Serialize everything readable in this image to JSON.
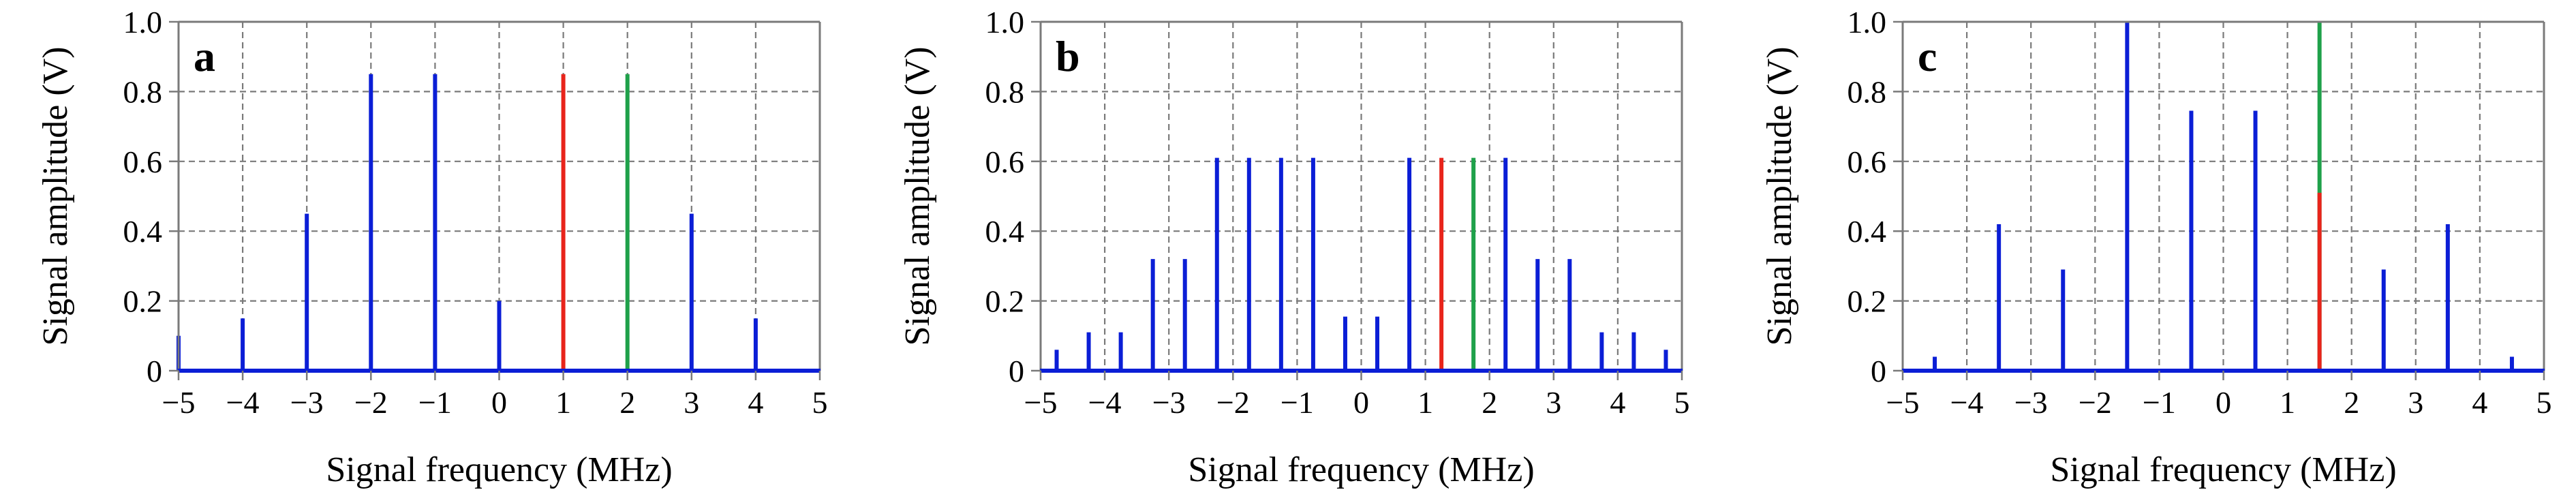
{
  "chart_data": [
    {
      "type": "bar",
      "panel_label": "a",
      "xlabel": "Signal frequency (MHz)",
      "ylabel": "Signal amplitude (V)",
      "xlim": [
        -5,
        5
      ],
      "ylim": [
        0,
        1.0
      ],
      "xticks": [
        "−5",
        "−4",
        "−3",
        "−2",
        "−1",
        "0",
        "1",
        "2",
        "3",
        "4",
        "5"
      ],
      "yticks": [
        "0",
        "0.2",
        "0.4",
        "0.6",
        "0.8",
        "1.0"
      ],
      "grid": true,
      "legend": "none",
      "series": [
        {
          "color": "#0b1ed6",
          "x": [
            -5,
            -4,
            -3,
            -2,
            -1,
            0,
            3,
            4
          ],
          "values": [
            0.1,
            0.15,
            0.45,
            0.85,
            0.85,
            0.2,
            0.45,
            0.15
          ]
        },
        {
          "color": "#e8241b",
          "x": [
            1
          ],
          "values": [
            0.85
          ]
        },
        {
          "color": "#1fa14a",
          "x": [
            2
          ],
          "values": [
            0.85
          ]
        }
      ]
    },
    {
      "type": "bar",
      "panel_label": "b",
      "xlabel": "Signal frequency (MHz)",
      "ylabel": "Signal amplitude (V)",
      "xlim": [
        -5,
        5
      ],
      "ylim": [
        0,
        1.0
      ],
      "xticks": [
        "−5",
        "−4",
        "−3",
        "−2",
        "−1",
        "0",
        "1",
        "2",
        "3",
        "4",
        "5"
      ],
      "yticks": [
        "0",
        "0.2",
        "0.4",
        "0.6",
        "0.8",
        "1.0"
      ],
      "grid": true,
      "legend": "none",
      "series": [
        {
          "color": "#0b1ed6",
          "x": [
            -4.75,
            -4.25,
            -3.75,
            -3.25,
            -2.75,
            -2.25,
            -1.75,
            -1.25,
            -0.75,
            -0.25,
            0.25,
            0.75,
            2.25,
            2.75,
            3.25,
            3.75,
            4.25,
            4.75
          ],
          "values": [
            0.06,
            0.11,
            0.11,
            0.32,
            0.32,
            0.61,
            0.61,
            0.61,
            0.61,
            0.155,
            0.155,
            0.61,
            0.61,
            0.32,
            0.32,
            0.11,
            0.11,
            0.06
          ]
        },
        {
          "color": "#e8241b",
          "x": [
            1.25
          ],
          "values": [
            0.61
          ]
        },
        {
          "color": "#1fa14a",
          "x": [
            1.75
          ],
          "values": [
            0.61
          ]
        }
      ]
    },
    {
      "type": "bar",
      "panel_label": "c",
      "xlabel": "Signal frequency (MHz)",
      "ylabel": "Signal amplitude (V)",
      "xlim": [
        -5,
        5
      ],
      "ylim": [
        0,
        1.0
      ],
      "xticks": [
        "−5",
        "−4",
        "−3",
        "−2",
        "−1",
        "0",
        "1",
        "2",
        "3",
        "4",
        "5"
      ],
      "yticks": [
        "0",
        "0.2",
        "0.4",
        "0.6",
        "0.8",
        "1.0"
      ],
      "grid": true,
      "legend": "none",
      "series": [
        {
          "color": "#0b1ed6",
          "x": [
            -4.5,
            -3.5,
            -2.5,
            -1.5,
            -0.5,
            0.5,
            2.5,
            3.5,
            4.5
          ],
          "values": [
            0.04,
            0.42,
            0.29,
            1.0,
            0.745,
            0.745,
            0.29,
            0.42,
            0.04
          ]
        },
        {
          "color": "#1fa14a",
          "x": [
            1.5
          ],
          "values": [
            1.0
          ]
        },
        {
          "color": "#e8241b",
          "x": [
            1.5
          ],
          "values": [
            0.51
          ]
        }
      ]
    }
  ]
}
